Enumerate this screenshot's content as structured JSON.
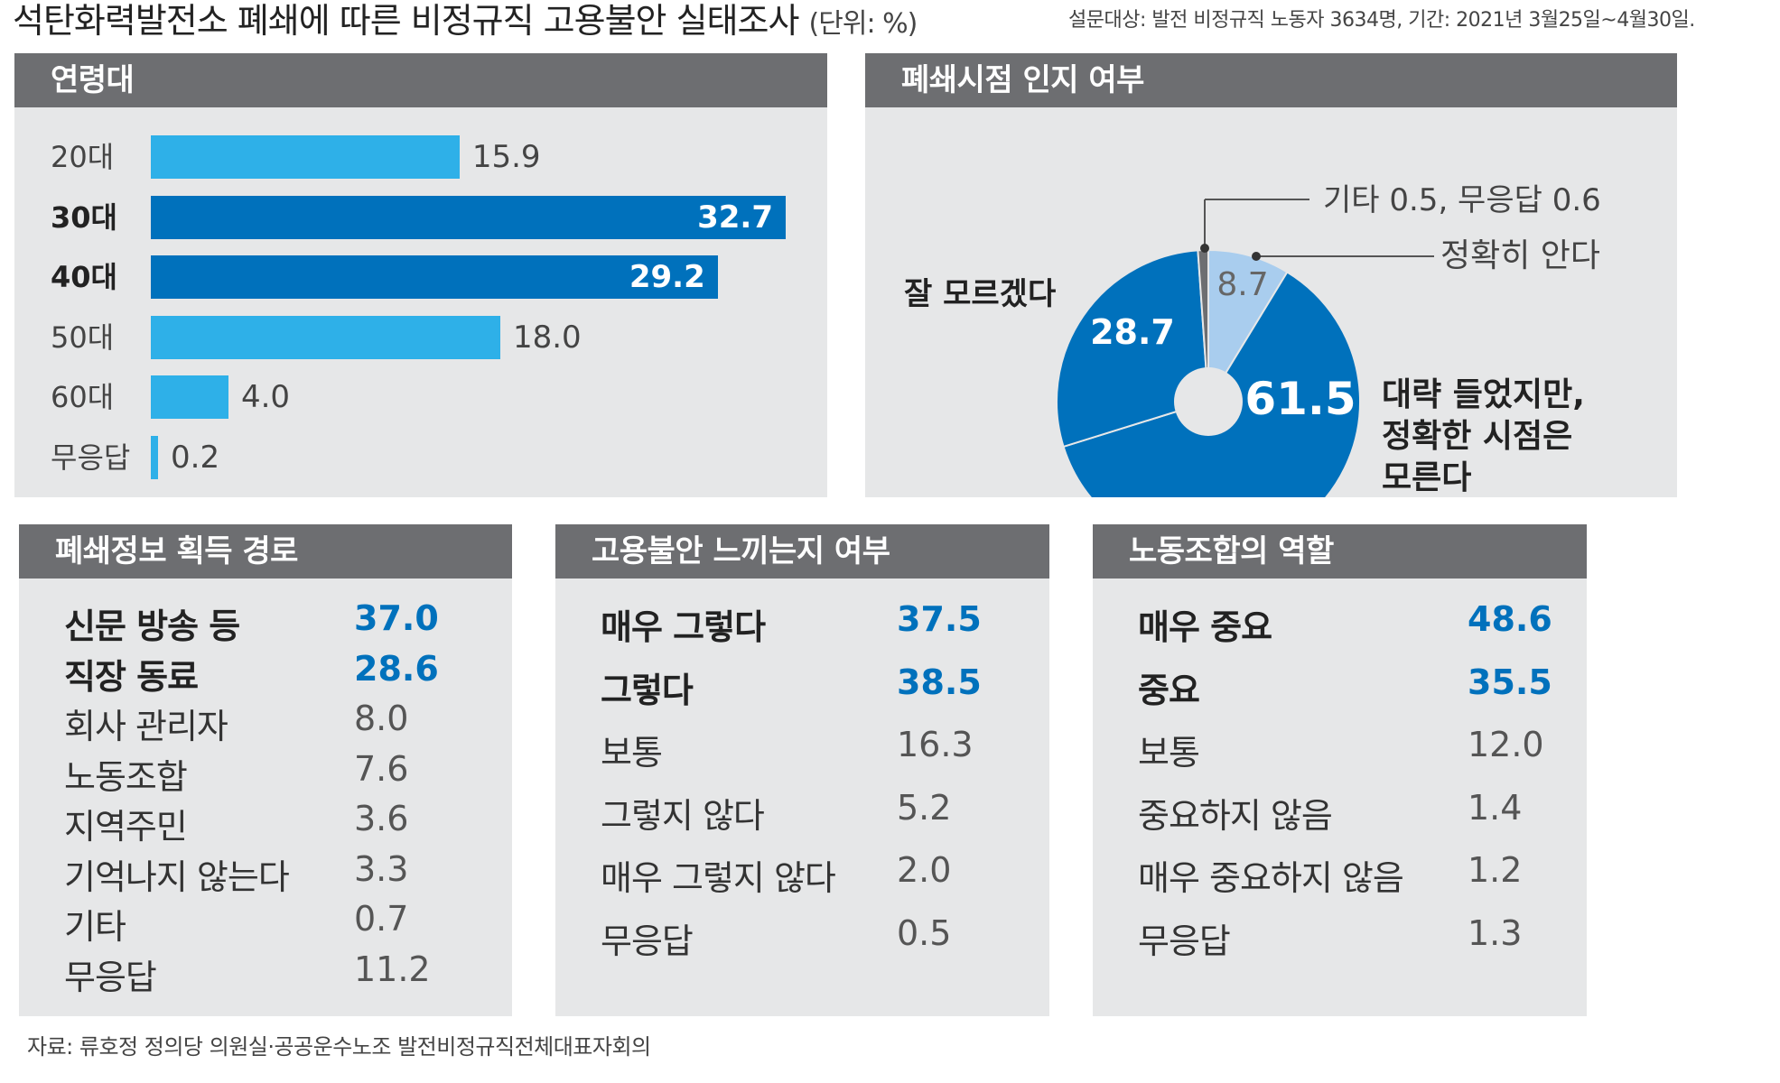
{
  "header": {
    "title": "석탄화력발전소 폐쇄에 따른 비정규직 고용불안 실태조사",
    "unit": "(단위: %)",
    "meta": "설문대상: 발전 비정규직 노동자 3634명, 기간: 2021년 3월25일~4월30일."
  },
  "source": "자료: 류호정 정의당 의원실·공공운수노조 발전비정규직전체대표자회의",
  "colors": {
    "light_blue": "#2eb0e8",
    "dark_blue": "#0071bc",
    "pale_blue": "#a9cdee",
    "header_gray": "#6d6e71",
    "panel_bg": "#e6e7e8"
  },
  "chart_data": [
    {
      "type": "bar",
      "title": "연령대",
      "categories": [
        "20대",
        "30대",
        "40대",
        "50대",
        "60대",
        "무응답"
      ],
      "values": [
        15.9,
        32.7,
        29.2,
        18.0,
        4.0,
        0.2
      ],
      "value_labels": [
        "15.9",
        "32.7",
        "29.2",
        "18.0",
        "4.0",
        "0.2"
      ],
      "highlight": [
        false,
        true,
        true,
        false,
        false,
        false
      ],
      "xlim": [
        0,
        32.7
      ],
      "orientation": "horizontal"
    },
    {
      "type": "pie",
      "title": "폐쇄시점 인지 여부",
      "donut": true,
      "slices": [
        {
          "label": "정확히 안다",
          "value": 8.7,
          "value_label": "8.7",
          "color": "#a9cdee"
        },
        {
          "label": "대략 들었지만, 정확한 시점은 모른다",
          "value": 61.5,
          "value_label": "61.5",
          "color": "#0071bc"
        },
        {
          "label": "잘 모르겠다",
          "value": 28.7,
          "value_label": "28.7",
          "color": "#0071bc"
        },
        {
          "label": "기타, 무응답",
          "value": 1.1,
          "value_label": "",
          "color": "#6d6e71"
        }
      ],
      "labels": {
        "exact": "정확히 안다",
        "rough_lines": [
          "대략 들었지만,",
          "정확한 시점은",
          "모른다"
        ],
        "unsure": "잘 모르겠다",
        "other": "기타 0.5, 무응답 0.6"
      }
    },
    {
      "type": "table",
      "title": "폐쇄정보 획득 경로",
      "rows": [
        {
          "label": "신문 방송 등",
          "value": "37.0",
          "highlight": true
        },
        {
          "label": "직장 동료",
          "value": "28.6",
          "highlight": true
        },
        {
          "label": "회사 관리자",
          "value": "8.0",
          "highlight": false
        },
        {
          "label": "노동조합",
          "value": "7.6",
          "highlight": false
        },
        {
          "label": "지역주민",
          "value": "3.6",
          "highlight": false
        },
        {
          "label": "기억나지 않는다",
          "value": "3.3",
          "highlight": false
        },
        {
          "label": "기타",
          "value": "0.7",
          "highlight": false
        },
        {
          "label": "무응답",
          "value": "11.2",
          "highlight": false
        }
      ]
    },
    {
      "type": "table",
      "title": "고용불안 느끼는지 여부",
      "rows": [
        {
          "label": "매우 그렇다",
          "value": "37.5",
          "highlight": true
        },
        {
          "label": "그렇다",
          "value": "38.5",
          "highlight": true
        },
        {
          "label": "보통",
          "value": "16.3",
          "highlight": false
        },
        {
          "label": "그렇지 않다",
          "value": "5.2",
          "highlight": false
        },
        {
          "label": "매우 그렇지 않다",
          "value": "2.0",
          "highlight": false
        },
        {
          "label": "무응답",
          "value": "0.5",
          "highlight": false
        }
      ]
    },
    {
      "type": "table",
      "title": "노동조합의 역할",
      "rows": [
        {
          "label": "매우 중요",
          "value": "48.6",
          "highlight": true
        },
        {
          "label": "중요",
          "value": "35.5",
          "highlight": true
        },
        {
          "label": "보통",
          "value": "12.0",
          "highlight": false
        },
        {
          "label": "중요하지 않음",
          "value": "1.4",
          "highlight": false
        },
        {
          "label": "매우 중요하지 않음",
          "value": "1.2",
          "highlight": false
        },
        {
          "label": "무응답",
          "value": "1.3",
          "highlight": false
        }
      ]
    }
  ]
}
